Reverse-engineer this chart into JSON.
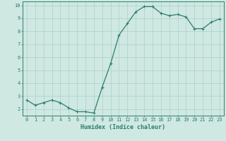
{
  "title": "",
  "xlabel": "Humidex (Indice chaleur)",
  "ylabel": "",
  "x": [
    0,
    1,
    2,
    3,
    4,
    5,
    6,
    7,
    8,
    9,
    10,
    11,
    12,
    13,
    14,
    15,
    16,
    17,
    18,
    19,
    20,
    21,
    22,
    23
  ],
  "y": [
    2.7,
    2.3,
    2.5,
    2.7,
    2.5,
    2.1,
    1.8,
    1.8,
    1.7,
    3.7,
    5.5,
    7.7,
    8.6,
    9.5,
    9.9,
    9.9,
    9.4,
    9.2,
    9.3,
    9.1,
    8.2,
    8.2,
    8.7,
    8.95
  ],
  "line_color": "#2e7d6e",
  "marker": "+",
  "marker_size": 3,
  "marker_lw": 0.8,
  "line_width": 0.9,
  "background_color": "#cfe8e2",
  "grid_color": "#aad0c8",
  "tick_color": "#2e7d6e",
  "label_color": "#2e7d6e",
  "ylim": [
    1.5,
    10.3
  ],
  "yticks": [
    2,
    3,
    4,
    5,
    6,
    7,
    8,
    9,
    10
  ],
  "xlim": [
    -0.5,
    23.5
  ],
  "xticks": [
    0,
    1,
    2,
    3,
    4,
    5,
    6,
    7,
    8,
    9,
    10,
    11,
    12,
    13,
    14,
    15,
    16,
    17,
    18,
    19,
    20,
    21,
    22,
    23
  ],
  "tick_fontsize": 5.0,
  "xlabel_fontsize": 6.0
}
